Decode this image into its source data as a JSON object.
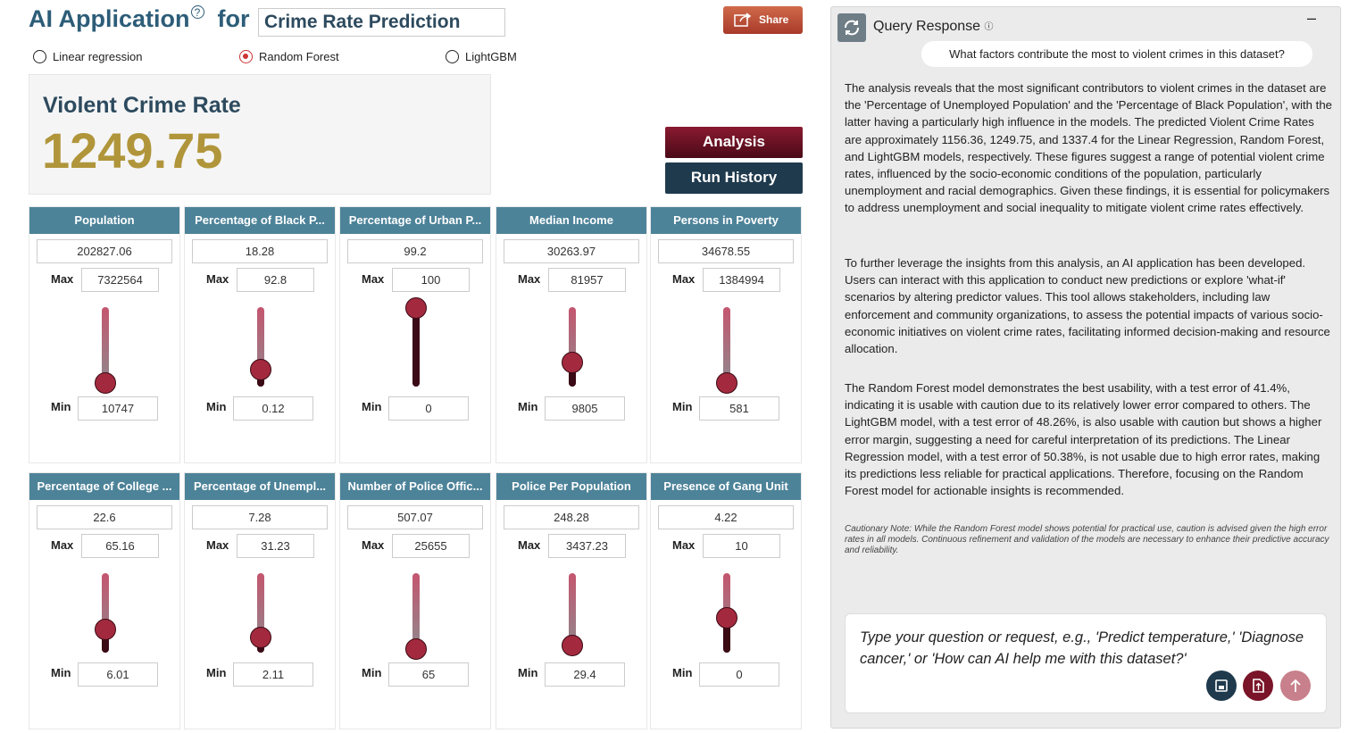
{
  "header": {
    "title": "AI Application",
    "connector": "for",
    "app_name": "Crime Rate Prediction",
    "share": "Share"
  },
  "models": {
    "options": [
      "Linear regression",
      "Random Forest",
      "LightGBM"
    ],
    "selected": 1
  },
  "result": {
    "label": "Violent Crime Rate",
    "value": 1249.75
  },
  "actions": [
    "Analysis",
    "Run History"
  ],
  "predictors": {
    "max_label": "Max",
    "min_label": "Min",
    "items": [
      {
        "name": "Population",
        "value": 202827.06,
        "max": 7322564,
        "min": 10747
      },
      {
        "name": "Percentage of Black P...",
        "value": 18.28,
        "max": 92.8,
        "min": 0.12
      },
      {
        "name": "Percentage of Urban P...",
        "value": 99.2,
        "max": 100,
        "min": 0
      },
      {
        "name": "Median Income",
        "value": 30263.97,
        "max": 81957,
        "min": 9805
      },
      {
        "name": "Persons in Poverty",
        "value": 34678.55,
        "max": 1384994,
        "min": 581
      },
      {
        "name": "Percentage of College ...",
        "value": 22.6,
        "max": 65.16,
        "min": 6.01
      },
      {
        "name": "Percentage of Unempl...",
        "value": 7.28,
        "max": 31.23,
        "min": 2.11
      },
      {
        "name": "Number of Police Offic...",
        "value": 507.07,
        "max": 25655,
        "min": 65
      },
      {
        "name": "Police Per Population",
        "value": 248.28,
        "max": 3437.23,
        "min": 29.4
      },
      {
        "name": "Presence of Gang Unit",
        "value": 4.22,
        "max": 10,
        "min": 0
      }
    ]
  },
  "chat": {
    "title": "Query Response",
    "question": "What factors contribute the most to violent crimes in this dataset?",
    "paragraphs": [
      "The analysis reveals that the most significant contributors to violent crimes in the dataset are the 'Percentage of Unemployed Population' and the 'Percentage of Black Population', with the latter having a particularly high influence in the models. The predicted Violent Crime Rates are approximately 1156.36, 1249.75, and 1337.4 for the Linear Regression, Random Forest, and LightGBM models, respectively. These figures suggest a range of potential violent crime rates, influenced by the socio-economic conditions of the population, particularly unemployment and racial demographics. Given these findings, it is essential for policymakers to address unemployment and social inequality to mitigate violent crime rates effectively.",
      "To further leverage the insights from this analysis, an AI application has been developed. Users can interact with this application to conduct new predictions or explore 'what-if' scenarios by altering predictor values. This tool allows stakeholders, including law enforcement and community organizations, to assess the potential impacts of various socio-economic initiatives on violent crime rates, facilitating informed decision-making and resource allocation.",
      "The Random Forest model demonstrates the best usability, with a test error of 41.4%, indicating it is usable with caution due to its relatively lower error compared to others. The LightGBM model, with a test error of 48.26%, is also usable with caution but shows a higher error margin, suggesting a need for careful interpretation of its predictions. The Linear Regression model, with a test error of 50.38%, is not usable due to high error rates, making its predictions less reliable for practical applications. Therefore, focusing on the Random Forest model for actionable insights is recommended."
    ],
    "note": "Cautionary Note: While the Random Forest model shows potential for practical use, caution is advised given the high error rates in all models. Continuous refinement and validation of the models are necessary to enhance their predictive accuracy and reliability.",
    "placeholder": "Type your question or request, e.g., 'Predict temperature,' 'Diagnose cancer,' or 'How can AI help me with this dataset?'"
  }
}
